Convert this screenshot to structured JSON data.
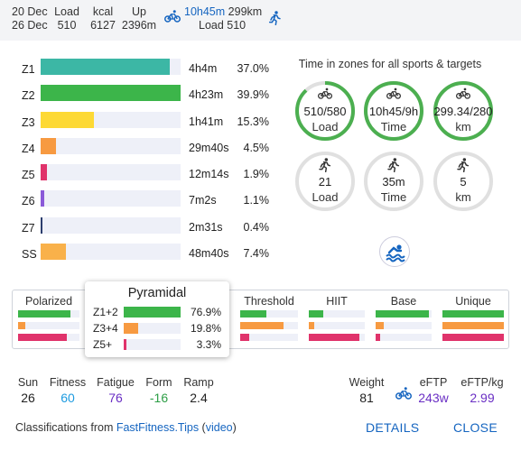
{
  "header": {
    "date_from": "20 Dec",
    "date_to": "26 Dec",
    "load_label": "Load",
    "load_value": "510",
    "kcal_label": "kcal",
    "kcal_value": "6127",
    "up_label": "Up",
    "up_value": "2396m",
    "ride_time": "10h45m",
    "ride_dist": "299km",
    "ride_load": "Load 510",
    "icons": {
      "ride": "bike-icon",
      "run": "run-icon"
    }
  },
  "zones": [
    {
      "label": "Z1",
      "time": "4h4m",
      "pct": "37.0%",
      "fraction": 0.92,
      "color": "#3cb7a5"
    },
    {
      "label": "Z2",
      "time": "4h23m",
      "pct": "39.9%",
      "fraction": 1.0,
      "color": "#3cb54a"
    },
    {
      "label": "Z3",
      "time": "1h41m",
      "pct": "15.3%",
      "fraction": 0.38,
      "color": "#fdd935"
    },
    {
      "label": "Z4",
      "time": "29m40s",
      "pct": "4.5%",
      "fraction": 0.11,
      "color": "#f79a41"
    },
    {
      "label": "Z5",
      "time": "12m14s",
      "pct": "1.9%",
      "fraction": 0.046,
      "color": "#e0336b"
    },
    {
      "label": "Z6",
      "time": "7m2s",
      "pct": "1.1%",
      "fraction": 0.027,
      "color": "#8b5ad9"
    },
    {
      "label": "Z7",
      "time": "2m31s",
      "pct": "0.4%",
      "fraction": 0.01,
      "color": "#2c3e6e"
    },
    {
      "label": "SS",
      "time": "48m40s",
      "pct": "7.4%",
      "fraction": 0.18,
      "color": "#f9b14a"
    }
  ],
  "time_in_zones": {
    "title": "Time in zones for all sports & targets",
    "rings": [
      {
        "icon": "bike-icon",
        "value": "510/580",
        "label": "Load",
        "progress": 0.88,
        "color": "#4caf50"
      },
      {
        "icon": "bike-icon",
        "value": "10h45/9h",
        "label": "Time",
        "progress": 1.0,
        "color": "#4caf50"
      },
      {
        "icon": "bike-icon",
        "value": "299.34/280",
        "label": "km",
        "progress": 1.0,
        "color": "#4caf50"
      },
      {
        "icon": "run-icon",
        "value": "21",
        "label": "Load",
        "progress": 0,
        "color": "#4caf50"
      },
      {
        "icon": "run-icon",
        "value": "35m",
        "label": "Time",
        "progress": 0,
        "color": "#4caf50"
      },
      {
        "icon": "run-icon",
        "value": "5",
        "label": "km",
        "progress": 0,
        "color": "#4caf50"
      }
    ],
    "swim_icon": "swim-icon"
  },
  "classifications": [
    {
      "name": "Polarized",
      "bars": [
        0.85,
        0.12,
        0.8
      ]
    },
    {
      "name": "Pyramidal",
      "bars": [
        0.6,
        0.2,
        0.05
      ]
    },
    {
      "name": "Threshold",
      "bars": [
        0.45,
        0.75,
        0.15
      ]
    },
    {
      "name": "HIIT",
      "bars": [
        0.25,
        0.1,
        0.9
      ]
    },
    {
      "name": "Base",
      "bars": [
        0.95,
        0.15,
        0.08
      ]
    },
    {
      "name": "Unique",
      "bars": [
        1.0,
        1.0,
        1.0
      ]
    }
  ],
  "classification_colors": [
    "#3cb54a",
    "#f79a41",
    "#e0336b"
  ],
  "popup": {
    "title": "Pyramidal",
    "rows": [
      {
        "label": "Z1+2",
        "pct": "76.9%",
        "fraction": 1.0,
        "color": "#3cb54a"
      },
      {
        "label": "Z3+4",
        "pct": "19.8%",
        "fraction": 0.26,
        "color": "#f79a41"
      },
      {
        "label": "Z5+",
        "pct": "3.3%",
        "fraction": 0.05,
        "color": "#e0336b"
      }
    ]
  },
  "stats": {
    "sun_label": "Sun",
    "sun_value": "26",
    "fitness_label": "Fitness",
    "fitness_value": "60",
    "fatigue_label": "Fatigue",
    "fatigue_value": "76",
    "form_label": "Form",
    "form_value": "-16",
    "ramp_label": "Ramp",
    "ramp_value": "2.4",
    "weight_label": "Weight",
    "weight_value": "81",
    "eftp_label": "eFTP",
    "eftp_value": "243w",
    "eftpkg_label": "eFTP/kg",
    "eftpkg_value": "2.99",
    "colors": {
      "fitness": "#1e9be0",
      "fatigue": "#6a2fc4",
      "form": "#2e9e46",
      "eftp": "#6a2fc4"
    }
  },
  "footer": {
    "prefix": "Classifications from ",
    "link": "FastFitness.Tips",
    "paren_open": " (",
    "video": "video",
    "paren_close": ")",
    "details": "DETAILS",
    "close": "CLOSE"
  }
}
